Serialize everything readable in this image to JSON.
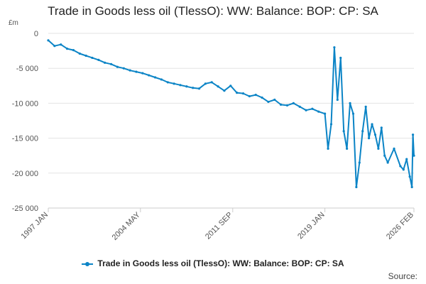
{
  "chart_data": {
    "type": "line",
    "title": "Trade in Goods less oil (TlessO): WW: Balance: BOP: CP: SA",
    "unit_label": "£m",
    "ylim": [
      -25000,
      0
    ],
    "y_ticks": [
      {
        "value": 0,
        "label": "0"
      },
      {
        "value": -5000,
        "label": "-5 000"
      },
      {
        "value": -10000,
        "label": "-10 000"
      },
      {
        "value": -15000,
        "label": "-15 000"
      },
      {
        "value": -20000,
        "label": "-20 000"
      },
      {
        "value": -25000,
        "label": "-25 000"
      }
    ],
    "xlim": [
      1997.0,
      2026.08
    ],
    "x_ticks": [
      {
        "value": 1997.0,
        "label": "1997 JAN"
      },
      {
        "value": 2004.33,
        "label": "2004 MAY"
      },
      {
        "value": 2011.67,
        "label": "2011 SEP"
      },
      {
        "value": 2019.0,
        "label": "2019 JAN"
      },
      {
        "value": 2026.08,
        "label": "2026 FEB"
      }
    ],
    "grid": true,
    "legend_position": "bottom",
    "series": [
      {
        "name": "Trade in Goods less oil (TlessO): WW: Balance: BOP: CP: SA",
        "color": "#0b84c6",
        "x": [
          1997.0,
          1997.5,
          1998.0,
          1998.5,
          1999.0,
          1999.5,
          2000.0,
          2000.5,
          2001.0,
          2001.5,
          2002.0,
          2002.5,
          2003.0,
          2003.5,
          2004.0,
          2004.5,
          2005.0,
          2005.5,
          2006.0,
          2006.5,
          2007.0,
          2007.5,
          2008.0,
          2008.5,
          2009.0,
          2009.5,
          2010.0,
          2010.5,
          2011.0,
          2011.5,
          2012.0,
          2012.5,
          2013.0,
          2013.5,
          2014.0,
          2014.5,
          2015.0,
          2015.5,
          2016.0,
          2016.5,
          2017.0,
          2017.5,
          2018.0,
          2018.5,
          2019.0,
          2019.25,
          2019.5,
          2019.75,
          2020.0,
          2020.25,
          2020.5,
          2020.75,
          2021.0,
          2021.25,
          2021.5,
          2021.75,
          2022.0,
          2022.25,
          2022.5,
          2022.75,
          2023.0,
          2023.25,
          2023.5,
          2023.75,
          2024.0,
          2024.5,
          2025.0,
          2025.25,
          2025.5,
          2025.75,
          2025.92,
          2026.0,
          2026.08
        ],
        "values": [
          -1000,
          -1800,
          -1600,
          -2200,
          -2400,
          -2900,
          -3200,
          -3500,
          -3800,
          -4200,
          -4400,
          -4800,
          -5000,
          -5300,
          -5500,
          -5700,
          -6000,
          -6300,
          -6600,
          -7000,
          -7200,
          -7400,
          -7600,
          -7800,
          -7900,
          -7200,
          -7000,
          -7600,
          -8200,
          -7500,
          -8500,
          -8600,
          -9000,
          -8800,
          -9200,
          -9800,
          -9500,
          -10200,
          -10300,
          -10000,
          -10500,
          -11000,
          -10800,
          -11200,
          -11500,
          -16500,
          -13000,
          -2000,
          -9500,
          -3500,
          -14000,
          -16500,
          -10000,
          -11500,
          -22000,
          -18500,
          -14000,
          -10500,
          -15000,
          -13000,
          -14500,
          -16500,
          -13500,
          -17500,
          -18500,
          -16500,
          -19000,
          -19500,
          -18000,
          -20500,
          -22000,
          -14500,
          -17500
        ]
      }
    ],
    "source_label": "Source:"
  }
}
